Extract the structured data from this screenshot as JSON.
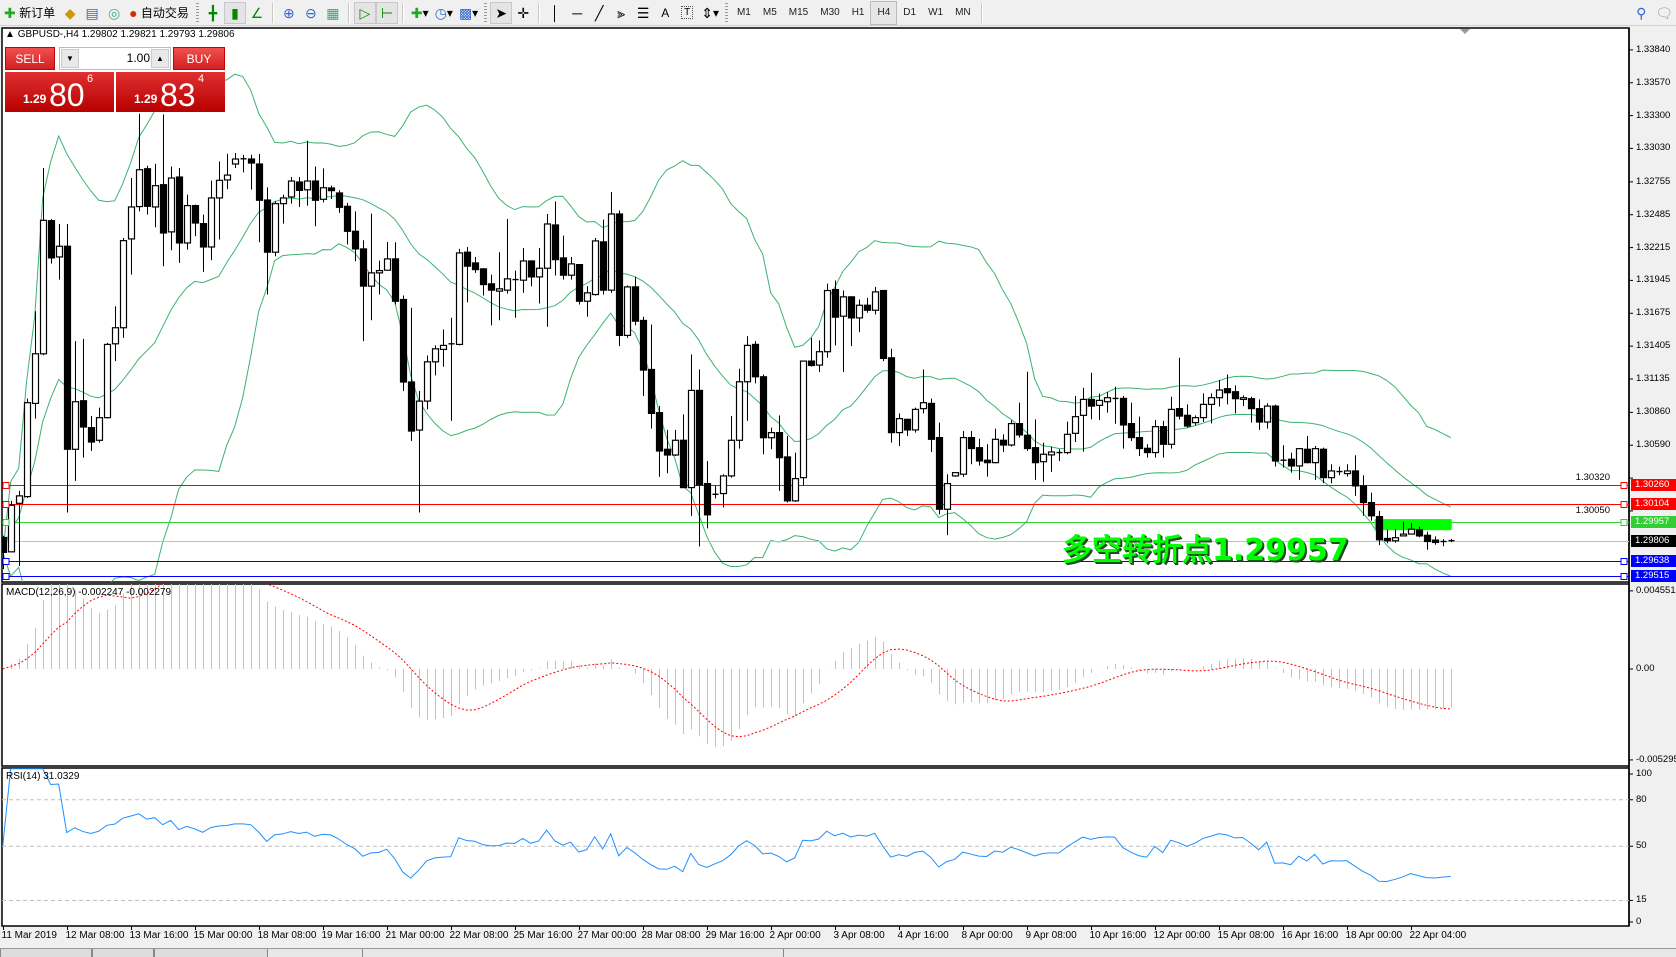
{
  "toolbar": {
    "new_order": "新订单",
    "auto_trading": "自动交易",
    "icons": [
      "new-order-icon",
      "metaeditor-icon",
      "market-watch-icon",
      "signals-icon",
      "auto-trading-icon",
      "bar-chart-icon",
      "candlestick-icon",
      "line-chart-icon",
      "zoom-in-icon",
      "zoom-out-icon",
      "tile-windows-icon",
      "auto-scroll-icon",
      "chart-shift-icon",
      "indicators-icon",
      "periods-icon",
      "templates-icon",
      "cursor-icon",
      "crosshair-icon",
      "vertical-line-icon",
      "horizontal-line-icon",
      "trendline-icon",
      "equidistant-channel-icon",
      "fibonacci-icon",
      "text-icon",
      "text-label-icon",
      "arrows-icon"
    ],
    "text_tool": "A",
    "label_tool": "T",
    "timeframes": [
      "M1",
      "M5",
      "M15",
      "M30",
      "H1",
      "H4",
      "D1",
      "W1",
      "MN"
    ],
    "active_timeframe": "H4"
  },
  "chart": {
    "header": "GBPUSD-,H4  1.29802 1.29821 1.29793 1.29806",
    "price_ticks": [
      "1.33840",
      "1.33570",
      "1.33300",
      "1.33030",
      "1.32755",
      "1.32485",
      "1.32215",
      "1.31945",
      "1.31675",
      "1.31405",
      "1.31135",
      "1.30860",
      "1.30590",
      "1.30320",
      "1.30050"
    ],
    "price_range": [
      1.29466,
      1.3402
    ],
    "levels": [
      {
        "price": "1.30260",
        "color": "#ff0000"
      },
      {
        "price": "1.30104",
        "color": "#ff0000"
      },
      {
        "price": "1.29957",
        "color": "#32cd32"
      },
      {
        "price": "1.29638",
        "color": "#0000ff"
      },
      {
        "price": "1.29515",
        "color": "#0000ff"
      }
    ],
    "bid": {
      "price": "1.29806",
      "line_color": "#c0c0c0",
      "label_color": "#000000"
    },
    "rectangle": {
      "top": 1.29983,
      "bottom": 1.29892,
      "start_bar": 172,
      "end_bar": 181,
      "color": "#00ff00"
    },
    "annotation": {
      "text": "多空转折点1.29957",
      "color": "#00ff00"
    },
    "bollinger": {
      "period": 20,
      "deviation": 2,
      "color": "#3cb371"
    },
    "candle_up": "#ffffff",
    "candle_down": "#000000"
  },
  "trade_panel": {
    "sell_label": "SELL",
    "buy_label": "BUY",
    "lot": "1.00",
    "sell": {
      "prefix": "1.29",
      "big": "80",
      "small": "6"
    },
    "buy": {
      "prefix": "1.29",
      "big": "83",
      "small": "4"
    }
  },
  "macd": {
    "title": "MACD(12,26,9) -0.002247 -0.002279",
    "fast": 12,
    "slow": 26,
    "signal": 9,
    "ticks": [
      {
        "v": 0.004551,
        "label": "0.004551"
      },
      {
        "v": 0,
        "label": "0.00"
      },
      {
        "v": -0.005295,
        "label": "-0.005295"
      }
    ],
    "range": [
      -0.00565,
      0.00495
    ],
    "histogram_color": "#c0c0c0",
    "signal_color": "#ff0000"
  },
  "rsi": {
    "title": "RSI(14) 31.0329",
    "period": 14,
    "levels": [
      80,
      50,
      15
    ],
    "ticks": [
      {
        "v": 100,
        "label": "100"
      },
      {
        "v": 80,
        "label": "80"
      },
      {
        "v": 50,
        "label": "50"
      },
      {
        "v": 15,
        "label": "15"
      },
      {
        "v": 0,
        "label": "0"
      }
    ],
    "range": [
      -1.5,
      100.5
    ],
    "color": "#1e90ff"
  },
  "time_axis": {
    "label_every_bars": 8,
    "labels": [
      "11 Mar 2019",
      "12 Mar 08:00",
      "13 Mar 16:00",
      "15 Mar 00:00",
      "18 Mar 08:00",
      "19 Mar 16:00",
      "21 Mar 00:00",
      "22 Mar 08:00",
      "25 Mar 16:00",
      "27 Mar 00:00",
      "28 Mar 08:00",
      "29 Mar 16:00",
      "2 Apr 00:00",
      "3 Apr 08:00",
      "4 Apr 16:00",
      "8 Apr 00:00",
      "9 Apr 08:00",
      "10 Apr 16:00",
      "12 Apr 00:00",
      "15 Apr 08:00",
      "16 Apr 16:00",
      "18 Apr 00:00",
      "22 Apr 04:00"
    ]
  },
  "chart_data": {
    "type": "candlestick",
    "symbol": "GBPUSD-",
    "timeframe": "H4",
    "ohlc": [
      [
        1.29832,
        1.29846,
        1.29572,
        1.29709
      ],
      [
        1.29714,
        1.30133,
        1.29709,
        1.30097
      ],
      [
        1.30113,
        1.30215,
        1.29599,
        1.30174
      ],
      [
        1.30168,
        1.30973,
        1.30157,
        1.3094
      ],
      [
        1.30934,
        1.31692,
        1.30809,
        1.31342
      ],
      [
        1.31342,
        1.32869,
        1.3133,
        1.32439
      ],
      [
        1.32436,
        1.3245,
        1.32084,
        1.3213
      ],
      [
        1.32138,
        1.32409,
        1.31952,
        1.32226
      ],
      [
        1.32226,
        1.32409,
        1.30037,
        1.30557
      ],
      [
        1.30557,
        1.31446,
        1.30297,
        1.30948
      ],
      [
        1.30956,
        1.31465,
        1.30488,
        1.3074
      ],
      [
        1.30735,
        1.30831,
        1.30543,
        1.30617
      ],
      [
        1.30631,
        1.30899,
        1.30612,
        1.30817
      ],
      [
        1.30817,
        1.31432,
        1.3081,
        1.31419
      ],
      [
        1.31424,
        1.31733,
        1.31282,
        1.31556
      ],
      [
        1.31556,
        1.32294,
        1.31473,
        1.32272
      ],
      [
        1.32286,
        1.32787,
        1.31993,
        1.32549
      ],
      [
        1.32552,
        1.33315,
        1.32513,
        1.32855
      ],
      [
        1.32863,
        1.32888,
        1.32486,
        1.32554
      ],
      [
        1.32549,
        1.32904,
        1.32382,
        1.32724
      ],
      [
        1.32732,
        1.3331,
        1.32062,
        1.32335
      ],
      [
        1.32344,
        1.32882,
        1.32193,
        1.32787
      ],
      [
        1.32795,
        1.32869,
        1.32089,
        1.32253
      ],
      [
        1.32253,
        1.3265,
        1.32198,
        1.3256
      ],
      [
        1.3256,
        1.32568,
        1.32308,
        1.32417
      ],
      [
        1.32412,
        1.32486,
        1.32015,
        1.3222
      ],
      [
        1.3222,
        1.32765,
        1.32111,
        1.32623
      ],
      [
        1.32623,
        1.32924,
        1.32281,
        1.32768
      ],
      [
        1.32771,
        1.32986,
        1.32696,
        1.32811
      ],
      [
        1.32902,
        1.32992,
        1.32869,
        1.32943
      ],
      [
        1.32945,
        1.32978,
        1.32833,
        1.32942
      ],
      [
        1.32943,
        1.32978,
        1.32691,
        1.3291
      ],
      [
        1.32902,
        1.32984,
        1.32259,
        1.32604
      ],
      [
        1.32606,
        1.3271,
        1.31829,
        1.32177
      ],
      [
        1.32177,
        1.32595,
        1.32144,
        1.32576
      ],
      [
        1.32576,
        1.3265,
        1.32412,
        1.32623
      ],
      [
        1.32631,
        1.32795,
        1.32576,
        1.32762
      ],
      [
        1.32754,
        1.32795,
        1.32549,
        1.32685
      ],
      [
        1.3269,
        1.33093,
        1.3256,
        1.32762
      ],
      [
        1.32762,
        1.32882,
        1.3239,
        1.32604
      ],
      [
        1.32612,
        1.32866,
        1.32587,
        1.32707
      ],
      [
        1.32705,
        1.32724,
        1.32614,
        1.32683
      ],
      [
        1.32664,
        1.32686,
        1.325,
        1.32546
      ],
      [
        1.32554,
        1.32582,
        1.3224,
        1.32349
      ],
      [
        1.32349,
        1.32513,
        1.32103,
        1.32204
      ],
      [
        1.32204,
        1.32275,
        1.31446,
        1.31898
      ],
      [
        1.31898,
        1.32494,
        1.31618,
        1.32007
      ],
      [
        1.32007,
        1.32108,
        1.31829,
        1.32026
      ],
      [
        1.32029,
        1.32261,
        1.32029,
        1.32122
      ],
      [
        1.32122,
        1.32259,
        1.31747,
        1.31774
      ],
      [
        1.31788,
        1.31821,
        1.31036,
        1.3111
      ],
      [
        1.3111,
        1.3172,
        1.30625,
        1.30707
      ],
      [
        1.30715,
        1.31036,
        1.30037,
        1.30953
      ],
      [
        1.30953,
        1.31328,
        1.30885,
        1.31276
      ],
      [
        1.31276,
        1.31411,
        1.31164,
        1.31383
      ],
      [
        1.31378,
        1.31542,
        1.31235,
        1.31411
      ],
      [
        1.31424,
        1.31638,
        1.3079,
        1.31424
      ],
      [
        1.31419,
        1.32204,
        1.31411,
        1.32171
      ],
      [
        1.32177,
        1.3222,
        1.31766,
        1.32062
      ],
      [
        1.32089,
        1.32138,
        1.32007,
        1.32034
      ],
      [
        1.3204,
        1.32045,
        1.31821,
        1.31911
      ],
      [
        1.31917,
        1.31993,
        1.31575,
        1.31865
      ],
      [
        1.31857,
        1.32177,
        1.31618,
        1.31876
      ],
      [
        1.31865,
        1.3245,
        1.31837,
        1.31958
      ],
      [
        1.31952,
        1.32026,
        1.31638,
        1.31952
      ],
      [
        1.31947,
        1.32212,
        1.31843,
        1.32105
      ],
      [
        1.32105,
        1.3211,
        1.31897,
        1.31974
      ],
      [
        1.31974,
        1.32212,
        1.31755,
        1.32045
      ],
      [
        1.32045,
        1.32491,
        1.31564,
        1.32409
      ],
      [
        1.32401,
        1.32595,
        1.31985,
        1.32116
      ],
      [
        1.3213,
        1.32313,
        1.31952,
        1.31988
      ],
      [
        1.31988,
        1.32138,
        1.31952,
        1.32081
      ],
      [
        1.32075,
        1.3208,
        1.31747,
        1.31774
      ],
      [
        1.31774,
        1.31897,
        1.31646,
        1.31843
      ],
      [
        1.31829,
        1.32294,
        1.3182,
        1.3227
      ],
      [
        1.32262,
        1.32445,
        1.31829,
        1.31865
      ],
      [
        1.31865,
        1.32672,
        1.31843,
        1.32491
      ],
      [
        1.32491,
        1.32521,
        1.31405,
        1.31493
      ],
      [
        1.31493,
        1.31903,
        1.31473,
        1.31892
      ],
      [
        1.31892,
        1.31974,
        1.31577,
        1.3161
      ],
      [
        1.31616,
        1.31646,
        1.30995,
        1.31208
      ],
      [
        1.31213,
        1.31583,
        1.30727,
        1.30852
      ],
      [
        1.30858,
        1.30913,
        1.3033,
        1.30543
      ],
      [
        1.30557,
        1.30716,
        1.3036,
        1.3051
      ],
      [
        1.3051,
        1.30716,
        1.30502,
        1.30631
      ],
      [
        1.30631,
        1.30844,
        1.3024,
        1.30242
      ],
      [
        1.30242,
        1.31337,
        1.3001,
        1.31041
      ],
      [
        1.31041,
        1.31213,
        1.29758,
        1.30264
      ],
      [
        1.30275,
        1.30461,
        1.29907,
        1.30018
      ],
      [
        1.30187,
        1.30256,
        1.30152,
        1.30187
      ],
      [
        1.30193,
        1.30352,
        1.30078,
        1.30338
      ],
      [
        1.30338,
        1.30831,
        1.30324,
        1.30631
      ],
      [
        1.30631,
        1.31219,
        1.30562,
        1.31112
      ],
      [
        1.31112,
        1.31487,
        1.3079,
        1.31411
      ],
      [
        1.31419,
        1.31446,
        1.31099,
        1.31153
      ],
      [
        1.31153,
        1.31172,
        1.30516,
        1.30652
      ],
      [
        1.30652,
        1.30735,
        1.30557,
        1.30694
      ],
      [
        1.30694,
        1.30836,
        1.30215,
        1.30488
      ],
      [
        1.30494,
        1.30666,
        1.30119,
        1.30133
      ],
      [
        1.30133,
        1.3053,
        1.30125,
        1.30316
      ],
      [
        1.30324,
        1.31287,
        1.30261,
        1.31282
      ],
      [
        1.31282,
        1.31473,
        1.31235,
        1.31246
      ],
      [
        1.31249,
        1.31452,
        1.31192,
        1.31359
      ],
      [
        1.31359,
        1.31919,
        1.31309,
        1.31862
      ],
      [
        1.3187,
        1.31944,
        1.31411,
        1.31643
      ],
      [
        1.31651,
        1.31862,
        1.31192,
        1.3181
      ],
      [
        1.3181,
        1.31815,
        1.31405,
        1.31637
      ],
      [
        1.31637,
        1.31788,
        1.3152,
        1.31741
      ],
      [
        1.31741,
        1.31802,
        1.31679,
        1.317
      ],
      [
        1.317,
        1.31892,
        1.31665,
        1.31851
      ],
      [
        1.31862,
        1.31865,
        1.31282,
        1.31304
      ],
      [
        1.31309,
        1.31383,
        1.30612,
        1.30694
      ],
      [
        1.30694,
        1.30852,
        1.30584,
        1.30809
      ],
      [
        1.30803,
        1.30808,
        1.30666,
        1.30716
      ],
      [
        1.30716,
        1.30899,
        1.30694,
        1.30885
      ],
      [
        1.30891,
        1.31213,
        1.30852,
        1.3094
      ],
      [
        1.30934,
        1.30973,
        1.30535,
        1.30639
      ],
      [
        1.30653,
        1.30776,
        1.30023,
        1.30064
      ],
      [
        1.30064,
        1.30352,
        1.29851,
        1.30275
      ],
      [
        1.30338,
        1.3037,
        1.3033,
        1.30365
      ],
      [
        1.30352,
        1.30707,
        1.3033,
        1.30653
      ],
      [
        1.30653,
        1.30707,
        1.30434,
        1.30563
      ],
      [
        1.3057,
        1.30644,
        1.30423,
        1.30461
      ],
      [
        1.30467,
        1.30598,
        1.30332,
        1.30447
      ],
      [
        1.30447,
        1.30727,
        1.30442,
        1.30639
      ],
      [
        1.30631,
        1.3068,
        1.30535,
        1.30592
      ],
      [
        1.30592,
        1.30795,
        1.30579,
        1.30768
      ],
      [
        1.30768,
        1.3094,
        1.30653,
        1.30675
      ],
      [
        1.30672,
        1.31194,
        1.30543,
        1.30563
      ],
      [
        1.3057,
        1.30803,
        1.30305,
        1.30447
      ],
      [
        1.30455,
        1.30612,
        1.30289,
        1.30516
      ],
      [
        1.30511,
        1.30579,
        1.30371,
        1.30535
      ],
      [
        1.3053,
        1.30557,
        1.30461,
        1.3053
      ],
      [
        1.3053,
        1.30784,
        1.30516,
        1.3068
      ],
      [
        1.30688,
        1.30995,
        1.30617,
        1.30825
      ],
      [
        1.30836,
        1.31063,
        1.30538,
        1.30967
      ],
      [
        1.30967,
        1.31186,
        1.30803,
        1.30912
      ],
      [
        1.30918,
        1.31014,
        1.30798,
        1.30959
      ],
      [
        1.30948,
        1.31027,
        1.30858,
        1.30981
      ],
      [
        1.30975,
        1.31071,
        1.30767,
        1.30975
      ],
      [
        1.30975,
        1.30995,
        1.30562,
        1.30757
      ],
      [
        1.30768,
        1.3094,
        1.30625,
        1.30653
      ],
      [
        1.30653,
        1.30825,
        1.30502,
        1.30563
      ],
      [
        1.30565,
        1.30598,
        1.30488,
        1.3053
      ],
      [
        1.3053,
        1.30798,
        1.30488,
        1.30743
      ],
      [
        1.30743,
        1.3079,
        1.30488,
        1.30598
      ],
      [
        1.30598,
        1.30989,
        1.30562,
        1.30885
      ],
      [
        1.30891,
        1.31309,
        1.30803,
        1.3083
      ],
      [
        1.30836,
        1.30926,
        1.30735,
        1.30748
      ],
      [
        1.30776,
        1.30836,
        1.30754,
        1.30817
      ],
      [
        1.30817,
        1.31017,
        1.30781,
        1.30926
      ],
      [
        1.30926,
        1.31017,
        1.3077,
        1.30981
      ],
      [
        1.30981,
        1.31126,
        1.30909,
        1.31044
      ],
      [
        1.31055,
        1.31172,
        1.30926,
        1.31022
      ],
      [
        1.3103,
        1.31082,
        1.30852,
        1.30973
      ],
      [
        1.30967,
        1.31,
        1.30913,
        1.30981
      ],
      [
        1.30973,
        1.30989,
        1.30776,
        1.30891
      ],
      [
        1.30891,
        1.30967,
        1.30716,
        1.30781
      ],
      [
        1.30781,
        1.30934,
        1.30727,
        1.30912
      ],
      [
        1.30912,
        1.30924,
        1.30415,
        1.30461
      ],
      [
        1.30467,
        1.3059,
        1.30406,
        1.30467
      ],
      [
        1.30475,
        1.3053,
        1.30365,
        1.3042
      ],
      [
        1.3042,
        1.30565,
        1.30305,
        1.30562
      ],
      [
        1.30557,
        1.30666,
        1.30442,
        1.30447
      ],
      [
        1.30447,
        1.30584,
        1.30305,
        1.30562
      ],
      [
        1.30557,
        1.30571,
        1.30278,
        1.30324
      ],
      [
        1.30324,
        1.30434,
        1.30278,
        1.30379
      ],
      [
        1.30374,
        1.30415,
        1.30343,
        1.30374
      ],
      [
        1.30357,
        1.30434,
        1.30332,
        1.30379
      ],
      [
        1.30379,
        1.30508,
        1.30174,
        1.30256
      ],
      [
        1.30256,
        1.30343,
        1.3001,
        1.30119
      ],
      [
        1.30119,
        1.30201,
        1.29969,
        1.3001
      ],
      [
        1.30004,
        1.30051,
        1.29769,
        1.29813
      ],
      [
        1.29824,
        1.29895,
        1.29785,
        1.29805
      ],
      [
        1.29805,
        1.299,
        1.2979,
        1.2983
      ],
      [
        1.29845,
        1.2996,
        1.2984,
        1.2986
      ],
      [
        1.2986,
        1.2995,
        1.29858,
        1.299
      ],
      [
        1.29895,
        1.2992,
        1.29834,
        1.29845
      ],
      [
        1.2985,
        1.2988,
        1.29731,
        1.29799
      ],
      [
        1.2981,
        1.29841,
        1.29772,
        1.29791
      ],
      [
        1.29799,
        1.29819,
        1.2976,
        1.29799
      ],
      [
        1.29802,
        1.29821,
        1.29793,
        1.29806
      ]
    ]
  }
}
